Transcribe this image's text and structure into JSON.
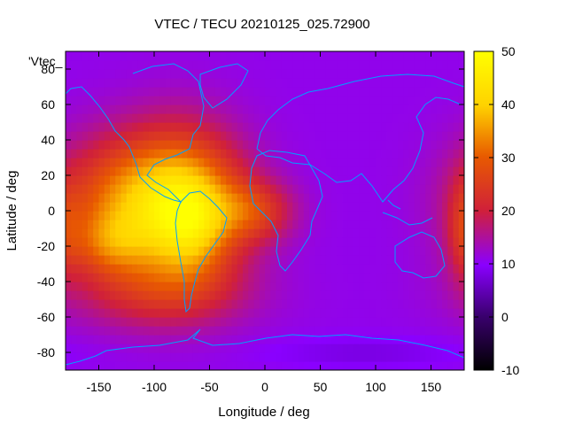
{
  "chart_data": {
    "type": "heatmap",
    "title": "VTEC / TECU 20210125_025.72900",
    "xlabel": "Longitude / deg",
    "ylabel": "Latitude / deg",
    "series_label": "'Vtec_",
    "xlim": [
      -180,
      180
    ],
    "ylim": [
      -90,
      90
    ],
    "x_ticks": [
      -150,
      -100,
      -50,
      0,
      50,
      100,
      150
    ],
    "y_ticks": [
      -80,
      -60,
      -40,
      -20,
      0,
      20,
      40,
      60,
      80
    ],
    "colorbar": {
      "range": [
        -10,
        50
      ],
      "ticks": [
        -10,
        0,
        10,
        20,
        30,
        40,
        50
      ]
    },
    "background_value": 11,
    "features": [
      {
        "lon": -75,
        "lat": 5,
        "amp": 28,
        "sx": 38,
        "sy": 28
      },
      {
        "lon": -65,
        "lat": -10,
        "amp": 10,
        "sx": 22,
        "sy": 18
      },
      {
        "lon": -135,
        "lat": 5,
        "amp": 16,
        "sx": 40,
        "sy": 25
      },
      {
        "lon": -140,
        "lat": -18,
        "amp": 10,
        "sx": 25,
        "sy": 12
      },
      {
        "lon": -95,
        "lat": -45,
        "amp": 10,
        "sx": 55,
        "sy": 15
      },
      {
        "lon": -10,
        "lat": 0,
        "amp": 12,
        "sx": 25,
        "sy": 12
      },
      {
        "lon": 180,
        "lat": -10,
        "amp": 7,
        "sx": 10,
        "sy": 20
      },
      {
        "lon": 90,
        "lat": -80,
        "amp": -3,
        "sx": 60,
        "sy": 6
      }
    ],
    "colors": {
      "coast": "#00a0ff",
      "stops": [
        "#000000",
        "#3a006e",
        "#8a00ff",
        "#d0203a",
        "#e85a00",
        "#ffd200",
        "#ffff00"
      ]
    }
  }
}
